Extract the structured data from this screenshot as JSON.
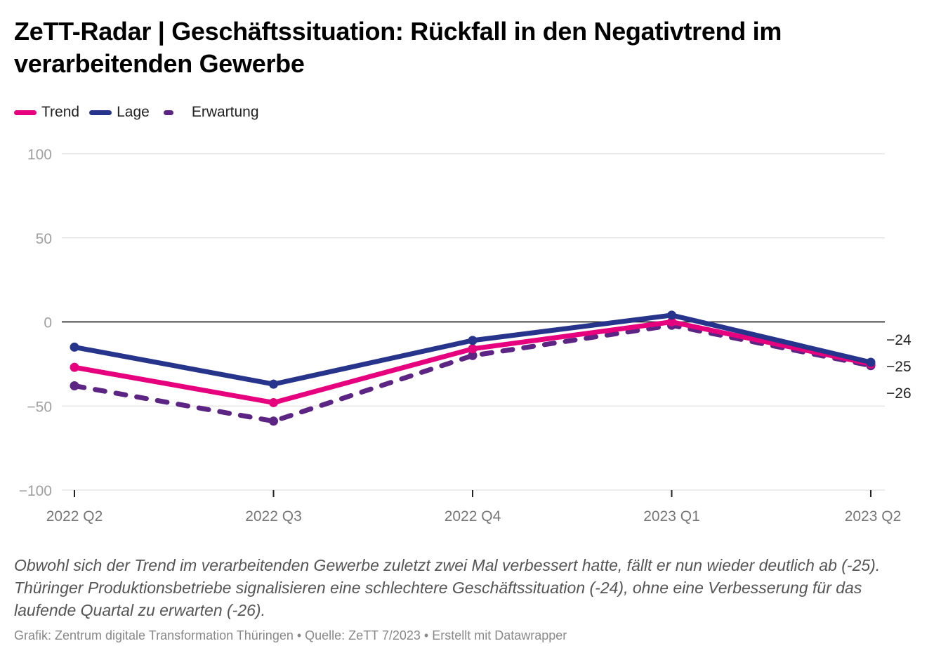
{
  "title": "ZeTT-Radar | Geschäftssituation: Rückfall in den Negativtrend im verarbeitenden Gewerbe",
  "legend": [
    {
      "label": "Trend",
      "color": "#e6007e",
      "style": "solid"
    },
    {
      "label": "Lage",
      "color": "#27348b",
      "style": "solid"
    },
    {
      "label": "Erwartung",
      "color": "#5c2483",
      "style": "dashed"
    }
  ],
  "chart_data": {
    "type": "line",
    "title": "ZeTT-Radar | Geschäftssituation: Rückfall in den Negativtrend im verarbeitenden Gewerbe",
    "xlabel": "",
    "ylabel": "",
    "x": [
      "2022 Q2",
      "2022 Q3",
      "2022 Q4",
      "2023 Q1",
      "2023 Q2"
    ],
    "ylim": [
      -100,
      100
    ],
    "yticks": [
      100,
      50,
      0,
      -50,
      -100
    ],
    "ytick_labels": [
      "100",
      "50",
      "0",
      "−50",
      "−100"
    ],
    "grid": true,
    "legend_position": "top-left",
    "series": [
      {
        "name": "Trend",
        "color": "#e6007e",
        "dashed": false,
        "values": [
          -27,
          -48,
          -16,
          0,
          -25
        ]
      },
      {
        "name": "Lage",
        "color": "#27348b",
        "dashed": false,
        "values": [
          -15,
          -37,
          -11,
          4,
          -24
        ]
      },
      {
        "name": "Erwartung",
        "color": "#5c2483",
        "dashed": true,
        "values": [
          -38,
          -59,
          -20,
          -2,
          -26
        ]
      }
    ],
    "end_labels": [
      "−24",
      "−25",
      "−26"
    ]
  },
  "description": "Obwohl sich der Trend im verarbeitenden Gewerbe zuletzt zwei Mal verbessert hatte, fällt er nun wieder deutlich ab (-25). Thüringer Produktionsbetriebe signalisieren eine schlechtere Geschäftssituation (-24), ohne eine Verbesserung für das laufende Quartal zu erwarten (-26).",
  "footer": "Grafik: Zentrum digitale Transformation Thüringen • Quelle: ZeTT 7/2023 • Erstellt mit Datawrapper"
}
